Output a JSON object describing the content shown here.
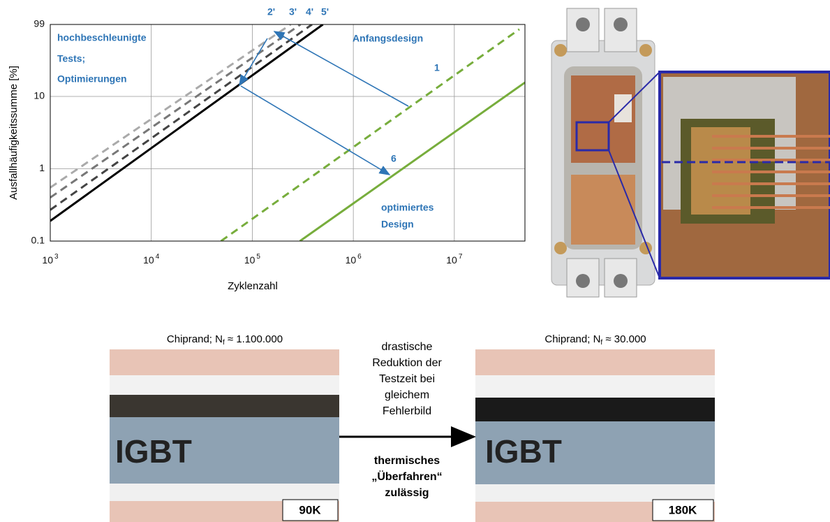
{
  "chart_data": {
    "type": "line",
    "x_label": "Zyklenzahl",
    "y_label": "Ausfallhäufigkeitssumme [%]",
    "xscale": "log",
    "yscale": "log",
    "grid": true,
    "xlim": [
      1000,
      50000000
    ],
    "ylim": [
      0.1,
      99
    ],
    "xticks": [
      {
        "value": 1000,
        "label": "10",
        "exponent": "3"
      },
      {
        "value": 10000,
        "label": "10",
        "exponent": "4"
      },
      {
        "value": 100000,
        "label": "10",
        "exponent": "5"
      },
      {
        "value": 1000000,
        "label": "10",
        "exponent": "6"
      },
      {
        "value": 10000000,
        "label": "10",
        "exponent": "7"
      }
    ],
    "yticks": [
      0.1,
      1,
      10,
      99
    ],
    "series": [
      {
        "color": "#aaaaaa",
        "dashed": true,
        "x": [
          1000,
          240000
        ],
        "values": [
          0.55,
          99
        ]
      },
      {
        "color": "#777777",
        "dashed": true,
        "x": [
          1000,
          300000
        ],
        "values": [
          0.4,
          99
        ]
      },
      {
        "color": "#444444",
        "dashed": true,
        "x": [
          1000,
          390000
        ],
        "values": [
          0.27,
          99
        ]
      },
      {
        "color": "#000000",
        "dashed": false,
        "x": [
          1000,
          500000
        ],
        "values": [
          0.19,
          99
        ]
      },
      {
        "color": "#77ad3c",
        "dashed": true,
        "x": [
          49000,
          44000000
        ],
        "values": [
          0.1,
          85
        ]
      },
      {
        "color": "#77ad3c",
        "dashed": false,
        "x": [
          296000,
          50000000
        ],
        "values": [
          0.1,
          15.6
        ]
      }
    ],
    "annotations": {
      "top_labels": [
        "2'",
        "3'",
        "4'",
        "5'"
      ],
      "left_text": [
        "hochbeschleunigte",
        "Tests;",
        "Optimierungen"
      ],
      "initial": "Anfangsdesign",
      "initial_number": "1",
      "optimized_number": "6",
      "optimized_text": [
        "optimiertes",
        "Design"
      ]
    }
  },
  "micrographs": {
    "left": {
      "caption": {
        "prefix": "Chiprand; N",
        "subscript": "f",
        "suffix": " ≈ 1.100.000"
      },
      "label": "IGBT",
      "temperature": "90K"
    },
    "right": {
      "caption": {
        "prefix": "Chiprand; N",
        "subscript": "f",
        "suffix": " ≈ 30.000"
      },
      "label": "IGBT",
      "temperature": "180K"
    },
    "middle_top": [
      "drastische",
      "Reduktion der",
      "Testzeit bei",
      "gleichem",
      "Fehlerbild"
    ],
    "middle_bottom": [
      "thermisches",
      "„Überfahren“",
      "zulässig"
    ]
  }
}
